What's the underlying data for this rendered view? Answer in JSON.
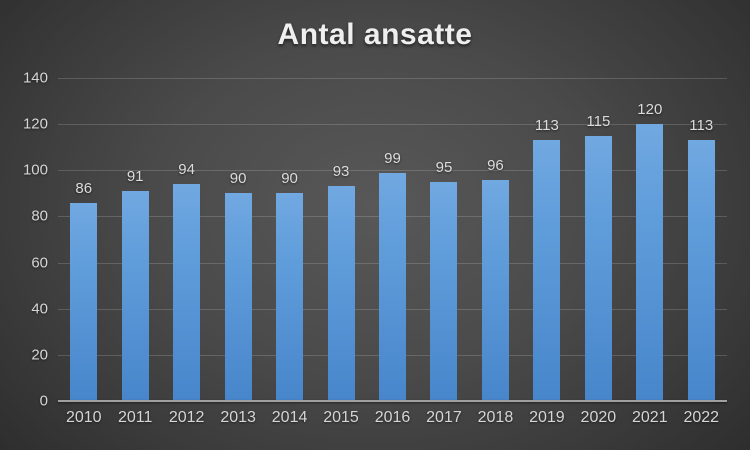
{
  "chart_data": {
    "type": "bar",
    "title": "Antal ansatte",
    "categories": [
      "2010",
      "2011",
      "2012",
      "2013",
      "2014",
      "2015",
      "2016",
      "2017",
      "2018",
      "2019",
      "2020",
      "2021",
      "2022"
    ],
    "values": [
      86,
      91,
      94,
      90,
      90,
      93,
      99,
      95,
      96,
      113,
      115,
      120,
      113
    ],
    "data_labels_shown": true,
    "xlabel": "",
    "ylabel": "",
    "ylim": [
      0,
      140
    ],
    "ytick_step": 20,
    "ytick_labels": [
      "0",
      "20",
      "40",
      "60",
      "80",
      "100",
      "120",
      "140"
    ],
    "grid": "horizontal",
    "legend": "none",
    "colors": {
      "bar_top": "#71a8e1",
      "bar_bottom": "#4886cc",
      "background_center": "#585858",
      "background_edge": "#272727",
      "gridline": "rgba(255,255,255,0.16)",
      "axis_line": "#a0a0a0",
      "tick_label": "#d6d6d6",
      "title_text": "#efefef"
    }
  }
}
